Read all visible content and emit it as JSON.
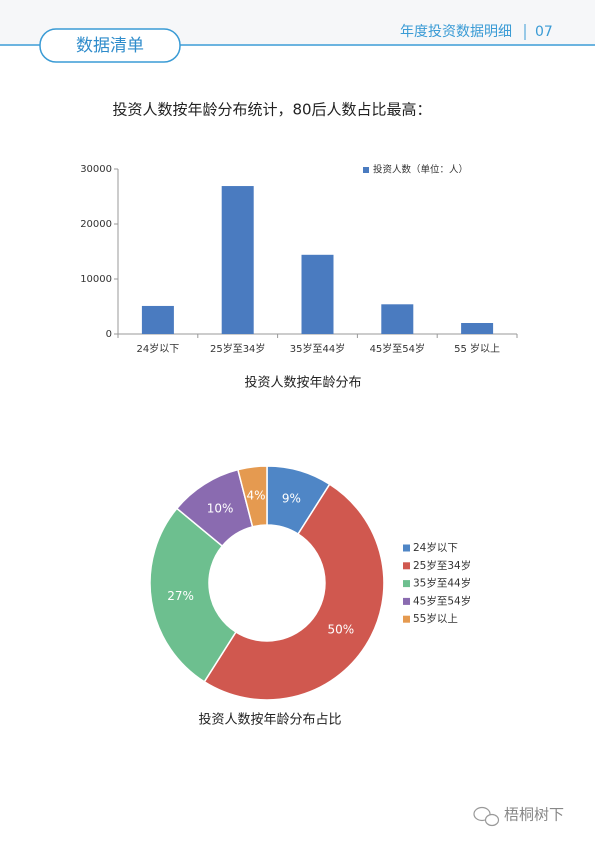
{
  "header": {
    "tab": "数据清单",
    "title": "年度投资数据明细",
    "page": "07"
  },
  "heading": "投资人数按年龄分布统计，80后人数占比最高：",
  "chart_data": [
    {
      "type": "bar",
      "xlabel": "投资人数按年龄分布",
      "categories": [
        "24岁以下",
        "25岁至34岁",
        "35岁至44岁",
        "45岁至54岁",
        "55 岁以上"
      ],
      "series": [
        {
          "name": "投资人数（单位：人）",
          "color": "#4a7bc0",
          "values": [
            5100,
            26900,
            14400,
            5400,
            2000
          ]
        }
      ],
      "ylim": [
        0,
        30000
      ],
      "yticks": [
        0,
        10000,
        20000,
        30000
      ],
      "grid": false,
      "legend": "top-right"
    },
    {
      "type": "pie",
      "title": "投资人数按年龄分布占比",
      "categories": [
        "24岁以下",
        "25岁至34岁",
        "35岁至44岁",
        "45岁至54岁",
        "55岁以上"
      ],
      "values": [
        9,
        50,
        27,
        10,
        4
      ],
      "value_labels": [
        "9%",
        "50%",
        "27%",
        "10%",
        "4%"
      ],
      "colors": [
        "#4f86c6",
        "#d0584f",
        "#6dbf8f",
        "#8a6bb0",
        "#e59a50"
      ],
      "donut": true,
      "legend": "right"
    }
  ],
  "footer": {
    "watermark": "梧桐树下"
  }
}
